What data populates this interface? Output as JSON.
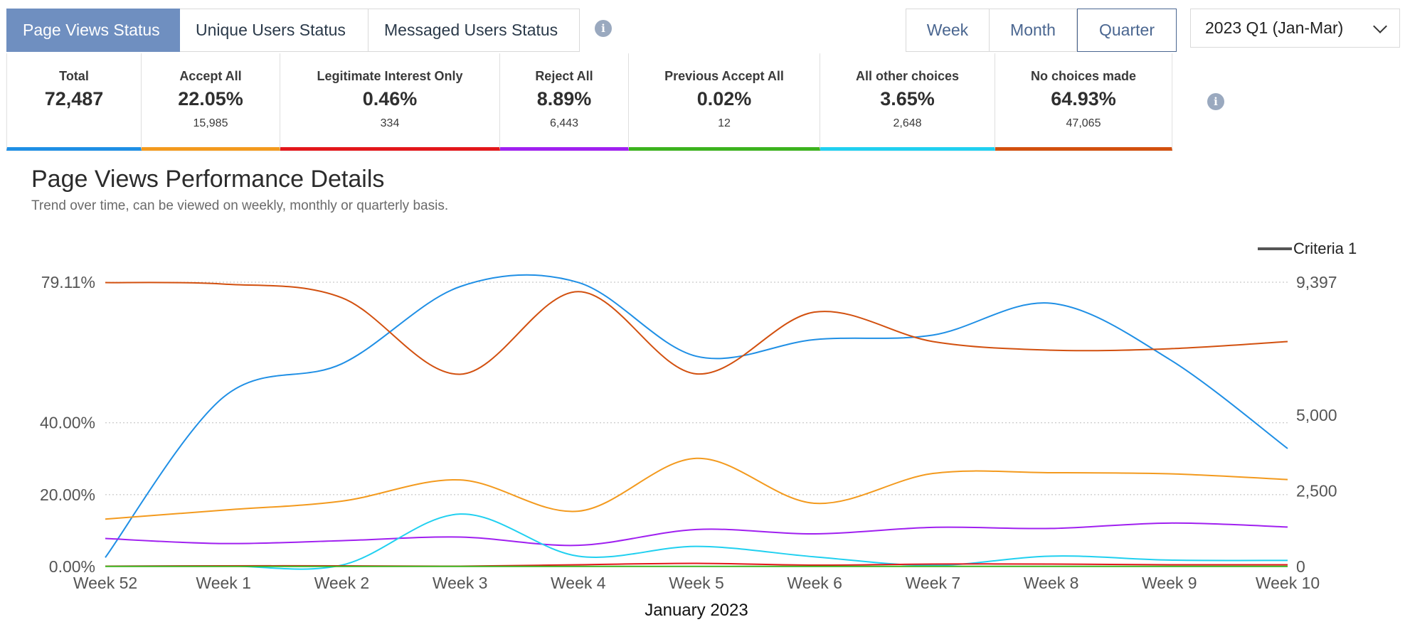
{
  "tabs": [
    {
      "label": "Page Views Status",
      "active": true
    },
    {
      "label": "Unique Users Status",
      "active": false
    },
    {
      "label": "Messaged Users Status",
      "active": false
    }
  ],
  "period": {
    "options": [
      "Week",
      "Month",
      "Quarter"
    ],
    "selected": "Quarter",
    "quarter_select": "2023 Q1 (Jan-Mar)"
  },
  "kpis": [
    {
      "label": "Total",
      "value": "72,487",
      "sub": "",
      "color": "#1f8fe5"
    },
    {
      "label": "Accept All",
      "value": "22.05%",
      "sub": "15,985",
      "color": "#f39a1e"
    },
    {
      "label": "Legitimate Interest Only",
      "value": "0.46%",
      "sub": "334",
      "color": "#e3171b"
    },
    {
      "label": "Reject All",
      "value": "8.89%",
      "sub": "6,443",
      "color": "#a020f0"
    },
    {
      "label": "Previous Accept All",
      "value": "0.02%",
      "sub": "12",
      "color": "#3cb31e"
    },
    {
      "label": "All other choices",
      "value": "3.65%",
      "sub": "2,648",
      "color": "#20d0f0"
    },
    {
      "label": "No choices made",
      "value": "64.93%",
      "sub": "47,065",
      "color": "#d2500f"
    }
  ],
  "section": {
    "title": "Page Views Performance Details",
    "subtitle": "Trend over time, can be viewed on weekly, monthly or quarterly basis."
  },
  "legend": {
    "label": "Criteria 1"
  },
  "chart_data": {
    "type": "line",
    "categories": [
      "Week 52",
      "Week 1",
      "Week 2",
      "Week 3",
      "Week 4",
      "Week 5",
      "Week 6",
      "Week 7",
      "Week 8",
      "Week 9",
      "Week 10"
    ],
    "xlabel": "January 2023",
    "y_left": {
      "ticks": [
        0,
        20,
        40,
        79.11
      ],
      "tick_labels": [
        "0.00%",
        "20.00%",
        "40.00%",
        "79.11%"
      ],
      "range": [
        0,
        79.11
      ]
    },
    "y_right": {
      "ticks": [
        0,
        2500,
        5000,
        9397
      ],
      "tick_labels": [
        "0",
        "2,500",
        "5,000",
        "9,397"
      ],
      "range": [
        0,
        9397
      ]
    },
    "series": [
      {
        "axis": "right",
        "color": "#1f8fe5",
        "values": [
          300,
          5600,
          6700,
          9250,
          9390,
          6950,
          7500,
          7650,
          8700,
          6850,
          3900
        ]
      },
      {
        "axis": "left",
        "color": "#d2500f",
        "values": [
          79,
          78.6,
          74.8,
          53.5,
          76.5,
          53.6,
          70.8,
          62.6,
          60.2,
          60.6,
          62.6
        ]
      },
      {
        "axis": "left",
        "color": "#f39a1e",
        "values": [
          13.2,
          15.7,
          18.2,
          24.1,
          15.4,
          30.1,
          17.6,
          25.9,
          26.1,
          25.8,
          24.2
        ]
      },
      {
        "axis": "left",
        "color": "#a020f0",
        "values": [
          7.8,
          6.4,
          7.2,
          8.2,
          5.9,
          10.3,
          9.1,
          10.9,
          10.6,
          12.1,
          11.0
        ]
      },
      {
        "axis": "left",
        "color": "#20d0f0",
        "values": [
          0.1,
          0.2,
          0.4,
          14.6,
          2.9,
          5.6,
          2.7,
          0.3,
          2.9,
          1.8,
          1.7
        ]
      },
      {
        "axis": "left",
        "color": "#e3171b",
        "values": [
          0.1,
          0.2,
          0.2,
          0.1,
          0.5,
          0.9,
          0.4,
          0.7,
          0.7,
          0.5,
          0.5
        ]
      },
      {
        "axis": "left",
        "color": "#3cb31e",
        "values": [
          0.05,
          0.05,
          0.05,
          0.05,
          0.05,
          0.05,
          0.05,
          0.05,
          0.05,
          0.05,
          0.05
        ]
      }
    ],
    "grid": true,
    "legend_position": "top-right"
  }
}
